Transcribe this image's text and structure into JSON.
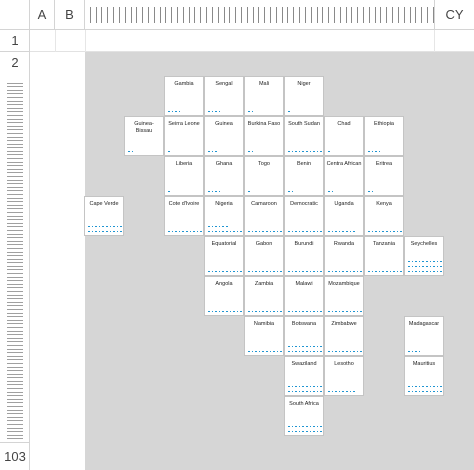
{
  "spreadsheet": {
    "column_headers": {
      "a": "A",
      "b": "B",
      "cy": "CY"
    },
    "row_headers": {
      "r1": "1",
      "r2": "2",
      "r103": "103"
    }
  },
  "colors": {
    "waffle_fill": "#1f95d2",
    "board_background": "#d6d6d6",
    "tile_background": "#ffffff"
  },
  "tiles": [
    {
      "label": "Gambia",
      "filled": 4,
      "col": 2,
      "row": 0
    },
    {
      "label": "Sengal",
      "filled": 4,
      "col": 3,
      "row": 0
    },
    {
      "label": "Mali",
      "filled": 2,
      "col": 4,
      "row": 0
    },
    {
      "label": "Niger",
      "filled": 1,
      "col": 5,
      "row": 0
    },
    {
      "label": "Guinea-Bissau",
      "filled": 2,
      "col": 1,
      "row": 1
    },
    {
      "label": "Seirra Leone",
      "filled": 1,
      "col": 2,
      "row": 1
    },
    {
      "label": "Guinea",
      "filled": 3,
      "col": 3,
      "row": 1
    },
    {
      "label": "Burkina Faso",
      "filled": 2,
      "col": 4,
      "row": 1
    },
    {
      "label": "South Sudan",
      "filled": 10,
      "col": 5,
      "row": 1
    },
    {
      "label": "Chad",
      "filled": 1,
      "col": 6,
      "row": 1
    },
    {
      "label": "Ethiopia",
      "filled": 4,
      "col": 7,
      "row": 1
    },
    {
      "label": "Liberia",
      "filled": 1,
      "col": 2,
      "row": 2
    },
    {
      "label": "Ghana",
      "filled": 4,
      "col": 3,
      "row": 2
    },
    {
      "label": "Togo",
      "filled": 1,
      "col": 4,
      "row": 2
    },
    {
      "label": "Benin",
      "filled": 2,
      "col": 5,
      "row": 2
    },
    {
      "label": "Centra African",
      "filled": 2,
      "col": 6,
      "row": 2
    },
    {
      "label": "Eritrea",
      "filled": 2,
      "col": 7,
      "row": 2
    },
    {
      "label": "Cape Verde",
      "filled": 40,
      "col": 0,
      "row": 3
    },
    {
      "label": "Cote d'Ivoire",
      "filled": 12,
      "col": 2,
      "row": 3
    },
    {
      "label": "Nigeria",
      "filled": 26,
      "col": 3,
      "row": 3
    },
    {
      "label": "Camaroon",
      "filled": 10,
      "col": 4,
      "row": 3
    },
    {
      "label": "Democratic",
      "filled": 14,
      "col": 5,
      "row": 3
    },
    {
      "label": "Uganda",
      "filled": 8,
      "col": 6,
      "row": 3
    },
    {
      "label": "Kenya",
      "filled": 20,
      "col": 7,
      "row": 3
    },
    {
      "label": "Equatorial",
      "filled": 20,
      "col": 3,
      "row": 4
    },
    {
      "label": "Gabon",
      "filled": 16,
      "col": 4,
      "row": 4
    },
    {
      "label": "Burundi",
      "filled": 10,
      "col": 5,
      "row": 4
    },
    {
      "label": "Rwanda",
      "filled": 20,
      "col": 6,
      "row": 4
    },
    {
      "label": "Tanzania",
      "filled": 10,
      "col": 7,
      "row": 4
    },
    {
      "label": "Seychelles",
      "filled": 50,
      "col": 8,
      "row": 4
    },
    {
      "label": "Angola",
      "filled": 10,
      "col": 3,
      "row": 5
    },
    {
      "label": "Zambia",
      "filled": 10,
      "col": 4,
      "row": 5
    },
    {
      "label": "Malawi",
      "filled": 10,
      "col": 5,
      "row": 5
    },
    {
      "label": "Mozambique",
      "filled": 10,
      "col": 6,
      "row": 5
    },
    {
      "label": "Namibia",
      "filled": 20,
      "col": 4,
      "row": 6
    },
    {
      "label": "Botswana",
      "filled": 30,
      "col": 5,
      "row": 6
    },
    {
      "label": "Zimbabwe",
      "filled": 20,
      "col": 6,
      "row": 6
    },
    {
      "label": "Madagascar",
      "filled": 4,
      "col": 8,
      "row": 6
    },
    {
      "label": "Swaziland",
      "filled": 30,
      "col": 5,
      "row": 7
    },
    {
      "label": "Lesotho",
      "filled": 8,
      "col": 6,
      "row": 7
    },
    {
      "label": "Mauritius",
      "filled": 40,
      "col": 8,
      "row": 7
    },
    {
      "label": "South Africa",
      "filled": 30,
      "col": 5,
      "row": 8
    }
  ]
}
